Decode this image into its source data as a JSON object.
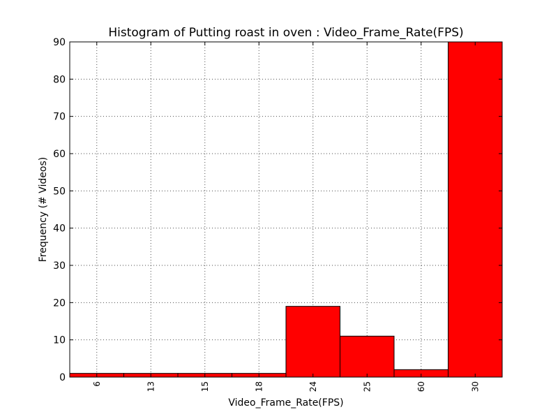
{
  "chart_data": {
    "type": "bar",
    "title": "Histogram of Putting roast in oven : Video_Frame_Rate(FPS)",
    "xlabel": "Video_Frame_Rate(FPS)",
    "ylabel": "Frequency (# Videos)",
    "categories": [
      "6",
      "13",
      "15",
      "18",
      "24",
      "25",
      "60",
      "30"
    ],
    "values": [
      1,
      1,
      1,
      1,
      19,
      11,
      2,
      90
    ],
    "ylim": [
      0,
      90
    ],
    "yticks": [
      0,
      10,
      20,
      30,
      40,
      50,
      60,
      70,
      80,
      90
    ],
    "grid": true,
    "colors": {
      "bar": "#ff0000",
      "bar_edge": "#000000",
      "grid": "#000000"
    }
  }
}
